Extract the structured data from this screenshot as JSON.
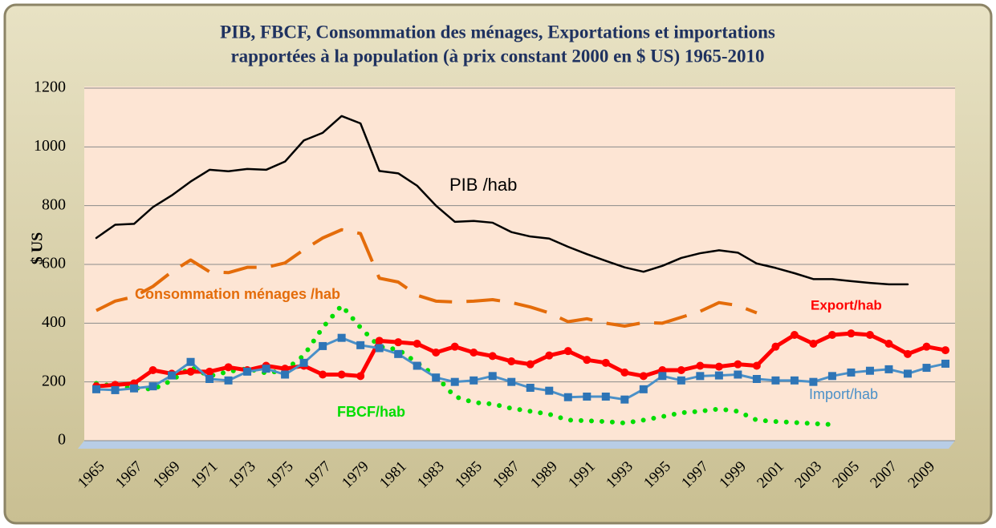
{
  "chart_data": {
    "type": "line",
    "title": [
      "PIB, FBCF, Consommation des ménages, Exportations et importations",
      "rapportées à la population (à prix constant  2000 en $ US) 1965-2010"
    ],
    "y_label": "$ US",
    "categories": [
      "1965",
      null,
      "1967",
      null,
      "1969",
      null,
      "1971",
      null,
      "1973",
      null,
      "1975",
      null,
      "1977",
      null,
      "1979",
      null,
      "1981",
      null,
      "1983",
      null,
      "1985",
      null,
      "1987",
      null,
      "1989",
      null,
      "1991",
      null,
      "1993",
      null,
      "1995",
      null,
      "1997",
      null,
      "1999",
      null,
      "2001",
      null,
      "2003",
      null,
      "2005",
      null,
      "2007",
      null,
      "2009",
      null
    ],
    "ylim": [
      0,
      1200
    ],
    "yticks": [
      0,
      200,
      400,
      600,
      800,
      1000,
      1200
    ],
    "grid": true,
    "series": [
      {
        "name": "PIB /hab",
        "color": "#000000",
        "style": "solid",
        "marker": "none",
        "values": [
          690,
          735,
          738,
          795,
          835,
          882,
          922,
          917,
          925,
          922,
          950,
          1022,
          1048,
          1105,
          1080,
          918,
          910,
          868,
          800,
          745,
          748,
          742,
          710,
          695,
          688,
          660,
          635,
          612,
          590,
          575,
          595,
          622,
          638,
          648,
          640,
          603,
          588,
          570,
          550,
          550,
          543,
          537,
          532,
          532,
          null,
          null
        ]
      },
      {
        "name": "Consommation ménages /hab",
        "color": "#e46c0a",
        "style": "dashed",
        "marker": "none",
        "values": [
          443,
          475,
          490,
          525,
          575,
          615,
          575,
          572,
          590,
          590,
          605,
          650,
          690,
          718,
          705,
          553,
          540,
          495,
          475,
          472,
          475,
          480,
          470,
          455,
          435,
          405,
          415,
          400,
          390,
          402,
          400,
          420,
          440,
          470,
          460,
          435,
          null,
          null,
          null,
          null,
          null,
          null,
          null,
          null,
          null,
          null
        ]
      },
      {
        "name": "FBCF/hab",
        "color": "#00dd00",
        "style": "dotted",
        "marker": "none",
        "values": [
          195,
          185,
          180,
          175,
          205,
          250,
          220,
          235,
          245,
          230,
          240,
          290,
          385,
          460,
          385,
          320,
          310,
          265,
          220,
          150,
          130,
          125,
          110,
          100,
          90,
          70,
          68,
          65,
          60,
          70,
          82,
          95,
          100,
          108,
          100,
          70,
          65,
          62,
          58,
          55,
          null,
          null,
          null,
          null,
          null,
          null
        ]
      },
      {
        "name": "Export/hab",
        "color": "#ff0000",
        "style": "solid",
        "marker": "circle",
        "values": [
          185,
          190,
          195,
          240,
          228,
          235,
          235,
          250,
          240,
          255,
          245,
          255,
          225,
          225,
          220,
          340,
          335,
          330,
          300,
          320,
          300,
          288,
          270,
          260,
          290,
          305,
          275,
          265,
          232,
          220,
          240,
          240,
          255,
          252,
          260,
          255,
          320,
          360,
          330,
          360,
          365,
          360,
          330,
          295,
          320,
          308
        ]
      },
      {
        "name": "Import/hab",
        "color": "#4a90c8",
        "style": "solid",
        "marker": "square",
        "values": [
          175,
          172,
          178,
          185,
          222,
          268,
          210,
          205,
          235,
          245,
          225,
          265,
          322,
          350,
          325,
          315,
          295,
          255,
          215,
          200,
          205,
          220,
          200,
          180,
          170,
          148,
          150,
          150,
          140,
          175,
          220,
          205,
          220,
          222,
          225,
          210,
          205,
          205,
          200,
          220,
          232,
          238,
          243,
          228,
          248,
          262
        ]
      }
    ]
  }
}
